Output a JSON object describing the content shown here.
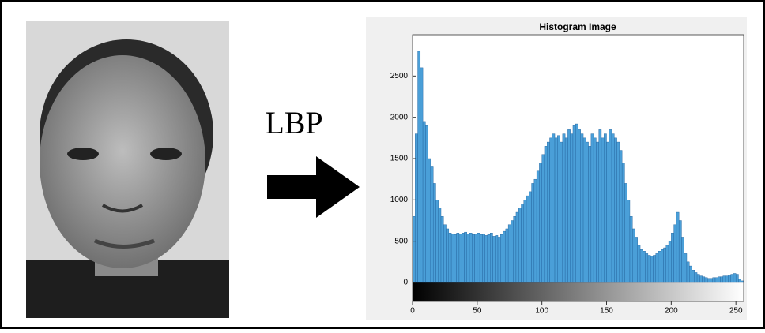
{
  "label": "LBP",
  "chart_data": {
    "type": "histogram",
    "title": "Histogram Image",
    "color": "#4a9fd8",
    "bins": [
      0,
      2,
      4,
      6,
      8,
      10,
      12,
      14,
      16,
      18,
      20,
      22,
      24,
      26,
      28,
      30,
      32,
      34,
      36,
      38,
      40,
      42,
      44,
      46,
      48,
      50,
      52,
      54,
      56,
      58,
      60,
      62,
      64,
      66,
      68,
      70,
      72,
      74,
      76,
      78,
      80,
      82,
      84,
      86,
      88,
      90,
      92,
      94,
      96,
      98,
      100,
      102,
      104,
      106,
      108,
      110,
      112,
      114,
      116,
      118,
      120,
      122,
      124,
      126,
      128,
      130,
      132,
      134,
      136,
      138,
      140,
      142,
      144,
      146,
      148,
      150,
      152,
      154,
      156,
      158,
      160,
      162,
      164,
      166,
      168,
      170,
      172,
      174,
      176,
      178,
      180,
      182,
      184,
      186,
      188,
      190,
      192,
      194,
      196,
      198,
      200,
      202,
      204,
      206,
      208,
      210,
      212,
      214,
      216,
      218,
      220,
      222,
      224,
      226,
      228,
      230,
      232,
      234,
      236,
      238,
      240,
      242,
      244,
      246,
      248,
      250,
      252,
      254,
      256
    ],
    "values": [
      800,
      1800,
      2800,
      2600,
      1950,
      1900,
      1500,
      1400,
      1200,
      1000,
      900,
      800,
      700,
      650,
      600,
      590,
      580,
      600,
      590,
      600,
      610,
      590,
      600,
      580,
      590,
      600,
      580,
      590,
      570,
      580,
      600,
      560,
      570,
      550,
      580,
      620,
      650,
      700,
      750,
      800,
      850,
      900,
      950,
      1000,
      1050,
      1100,
      1200,
      1250,
      1350,
      1450,
      1550,
      1650,
      1700,
      1750,
      1800,
      1750,
      1780,
      1700,
      1800,
      1750,
      1850,
      1800,
      1900,
      1920,
      1850,
      1800,
      1750,
      1700,
      1650,
      1800,
      1750,
      1700,
      1850,
      1750,
      1800,
      1700,
      1850,
      1800,
      1750,
      1700,
      1600,
      1450,
      1200,
      1000,
      800,
      650,
      550,
      450,
      400,
      380,
      350,
      330,
      320,
      330,
      350,
      380,
      400,
      420,
      450,
      500,
      600,
      700,
      850,
      750,
      550,
      350,
      250,
      200,
      150,
      120,
      100,
      80,
      70,
      60,
      50,
      50,
      60,
      60,
      70,
      70,
      80,
      80,
      90,
      100,
      110,
      100,
      40,
      20
    ],
    "xlim": [
      0,
      256
    ],
    "xticks": [
      0,
      50,
      100,
      150,
      200,
      250
    ],
    "ylim": [
      0,
      3000
    ],
    "yticks": [
      0,
      500,
      1000,
      1500,
      2000,
      2500
    ]
  }
}
